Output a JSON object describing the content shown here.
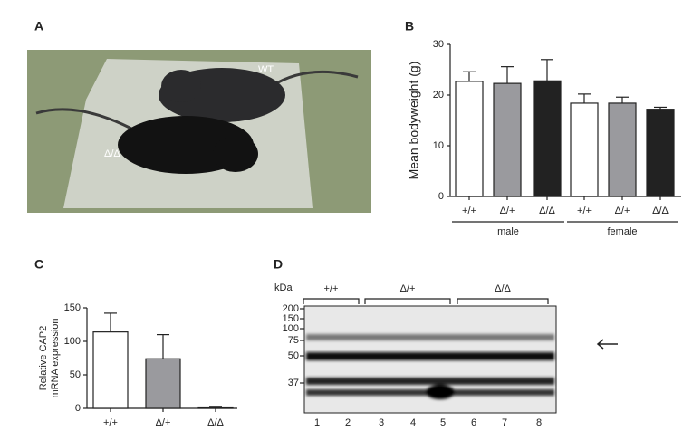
{
  "panels": {
    "a": "A",
    "b": "B",
    "c": "C",
    "d": "D"
  },
  "photo": {
    "labels": [
      "WT",
      "Δ/Δ"
    ]
  },
  "chart_data": [
    {
      "type": "bar",
      "ylabel": "Mean bodyweight (g)",
      "categories": [
        "+/+",
        "Δ/+",
        "Δ/Δ",
        "+/+",
        "Δ/+",
        "Δ/Δ"
      ],
      "groups": [
        "male",
        "female"
      ],
      "values": [
        22.7,
        22.3,
        22.8,
        18.4,
        18.4,
        17.2
      ],
      "errors": [
        1.9,
        3.3,
        4.2,
        1.8,
        1.2,
        0.4
      ],
      "colors": [
        "#ffffff",
        "#9a9a9e",
        "#222222",
        "#ffffff",
        "#9a9a9e",
        "#222222"
      ],
      "ylim": [
        0,
        30
      ],
      "yticks": [
        0,
        10,
        20,
        30
      ]
    },
    {
      "type": "bar",
      "ylabel": [
        "Relative CAP2",
        "mRNA expression"
      ],
      "categories": [
        "+/+",
        "Δ/+",
        "Δ/Δ"
      ],
      "values": [
        114,
        74,
        2
      ],
      "errors": [
        28,
        36,
        1
      ],
      "colors": [
        "#ffffff",
        "#9a9a9e",
        "#222222"
      ],
      "ylim": [
        0,
        150
      ],
      "yticks": [
        0,
        50,
        100,
        150
      ]
    }
  ],
  "blot": {
    "unit": "kDa",
    "markers": [
      "200",
      "150",
      "100",
      "75",
      "50",
      "37"
    ],
    "groups": [
      "+/+",
      "Δ/+",
      "Δ/Δ"
    ],
    "lanes": [
      "1",
      "2",
      "3",
      "4",
      "5",
      "6",
      "7",
      "8"
    ]
  }
}
